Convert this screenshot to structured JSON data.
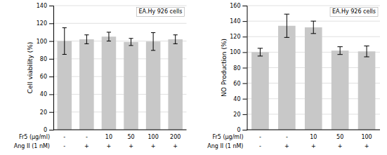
{
  "chart_data": [
    {
      "type": "bar",
      "title": "EA.Hy 926 cells",
      "ylabel": "Cell viability (%)",
      "categories": [
        [
          "-",
          "-"
        ],
        [
          "-",
          "+"
        ],
        [
          "10",
          "+"
        ],
        [
          "50",
          "+"
        ],
        [
          "100",
          "+"
        ],
        [
          "200",
          "+"
        ]
      ],
      "category_labels": [
        "Fr5 (μg/ml)",
        "Ang II (1 nM)"
      ],
      "values": [
        100,
        102,
        105,
        99,
        99.5,
        102
      ],
      "errors": [
        15,
        5,
        5,
        4,
        10,
        5
      ],
      "color": "#c8c8c8",
      "ylim": [
        0,
        140
      ],
      "yticks": [
        0,
        20,
        40,
        60,
        80,
        100,
        120,
        140
      ],
      "grid": true
    },
    {
      "type": "bar",
      "title": "EA.Hy 926 cells",
      "ylabel": "NO Production (%)",
      "categories": [
        [
          "-",
          "-"
        ],
        [
          "-",
          "+"
        ],
        [
          "10",
          "+"
        ],
        [
          "50",
          "+"
        ],
        [
          "100",
          "+"
        ]
      ],
      "category_labels": [
        "Fr5 (μg/ml)",
        "Ang II (1 nM)"
      ],
      "values": [
        100,
        134,
        132,
        102,
        101
      ],
      "errors": [
        5,
        15,
        8,
        5,
        7
      ],
      "color": "#c8c8c8",
      "ylim": [
        0,
        160
      ],
      "yticks": [
        0,
        20,
        40,
        60,
        80,
        100,
        120,
        140,
        160
      ],
      "grid": true
    }
  ]
}
